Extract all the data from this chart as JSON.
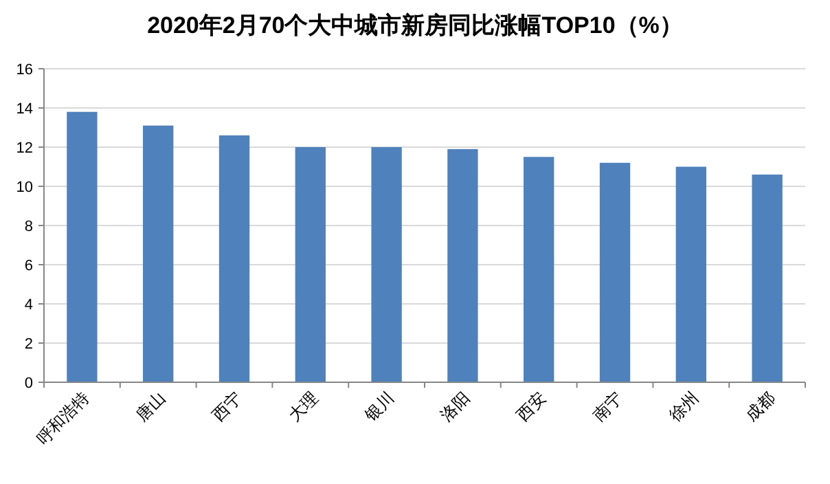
{
  "chart_data": {
    "type": "bar",
    "title": "2020年2月70个大中城市新房同比涨幅TOP10（%）",
    "categories": [
      "呼和浩特",
      "唐山",
      "西宁",
      "大理",
      "银川",
      "洛阳",
      "西安",
      "南宁",
      "徐州",
      "成都"
    ],
    "values": [
      13.8,
      13.1,
      12.6,
      12.0,
      12.0,
      11.9,
      11.5,
      11.2,
      11.0,
      10.6
    ],
    "color": "#4f81bd",
    "ylim": [
      0,
      16
    ],
    "yticks": [
      0,
      2,
      4,
      6,
      8,
      10,
      12,
      14,
      16
    ],
    "grid": "y"
  }
}
